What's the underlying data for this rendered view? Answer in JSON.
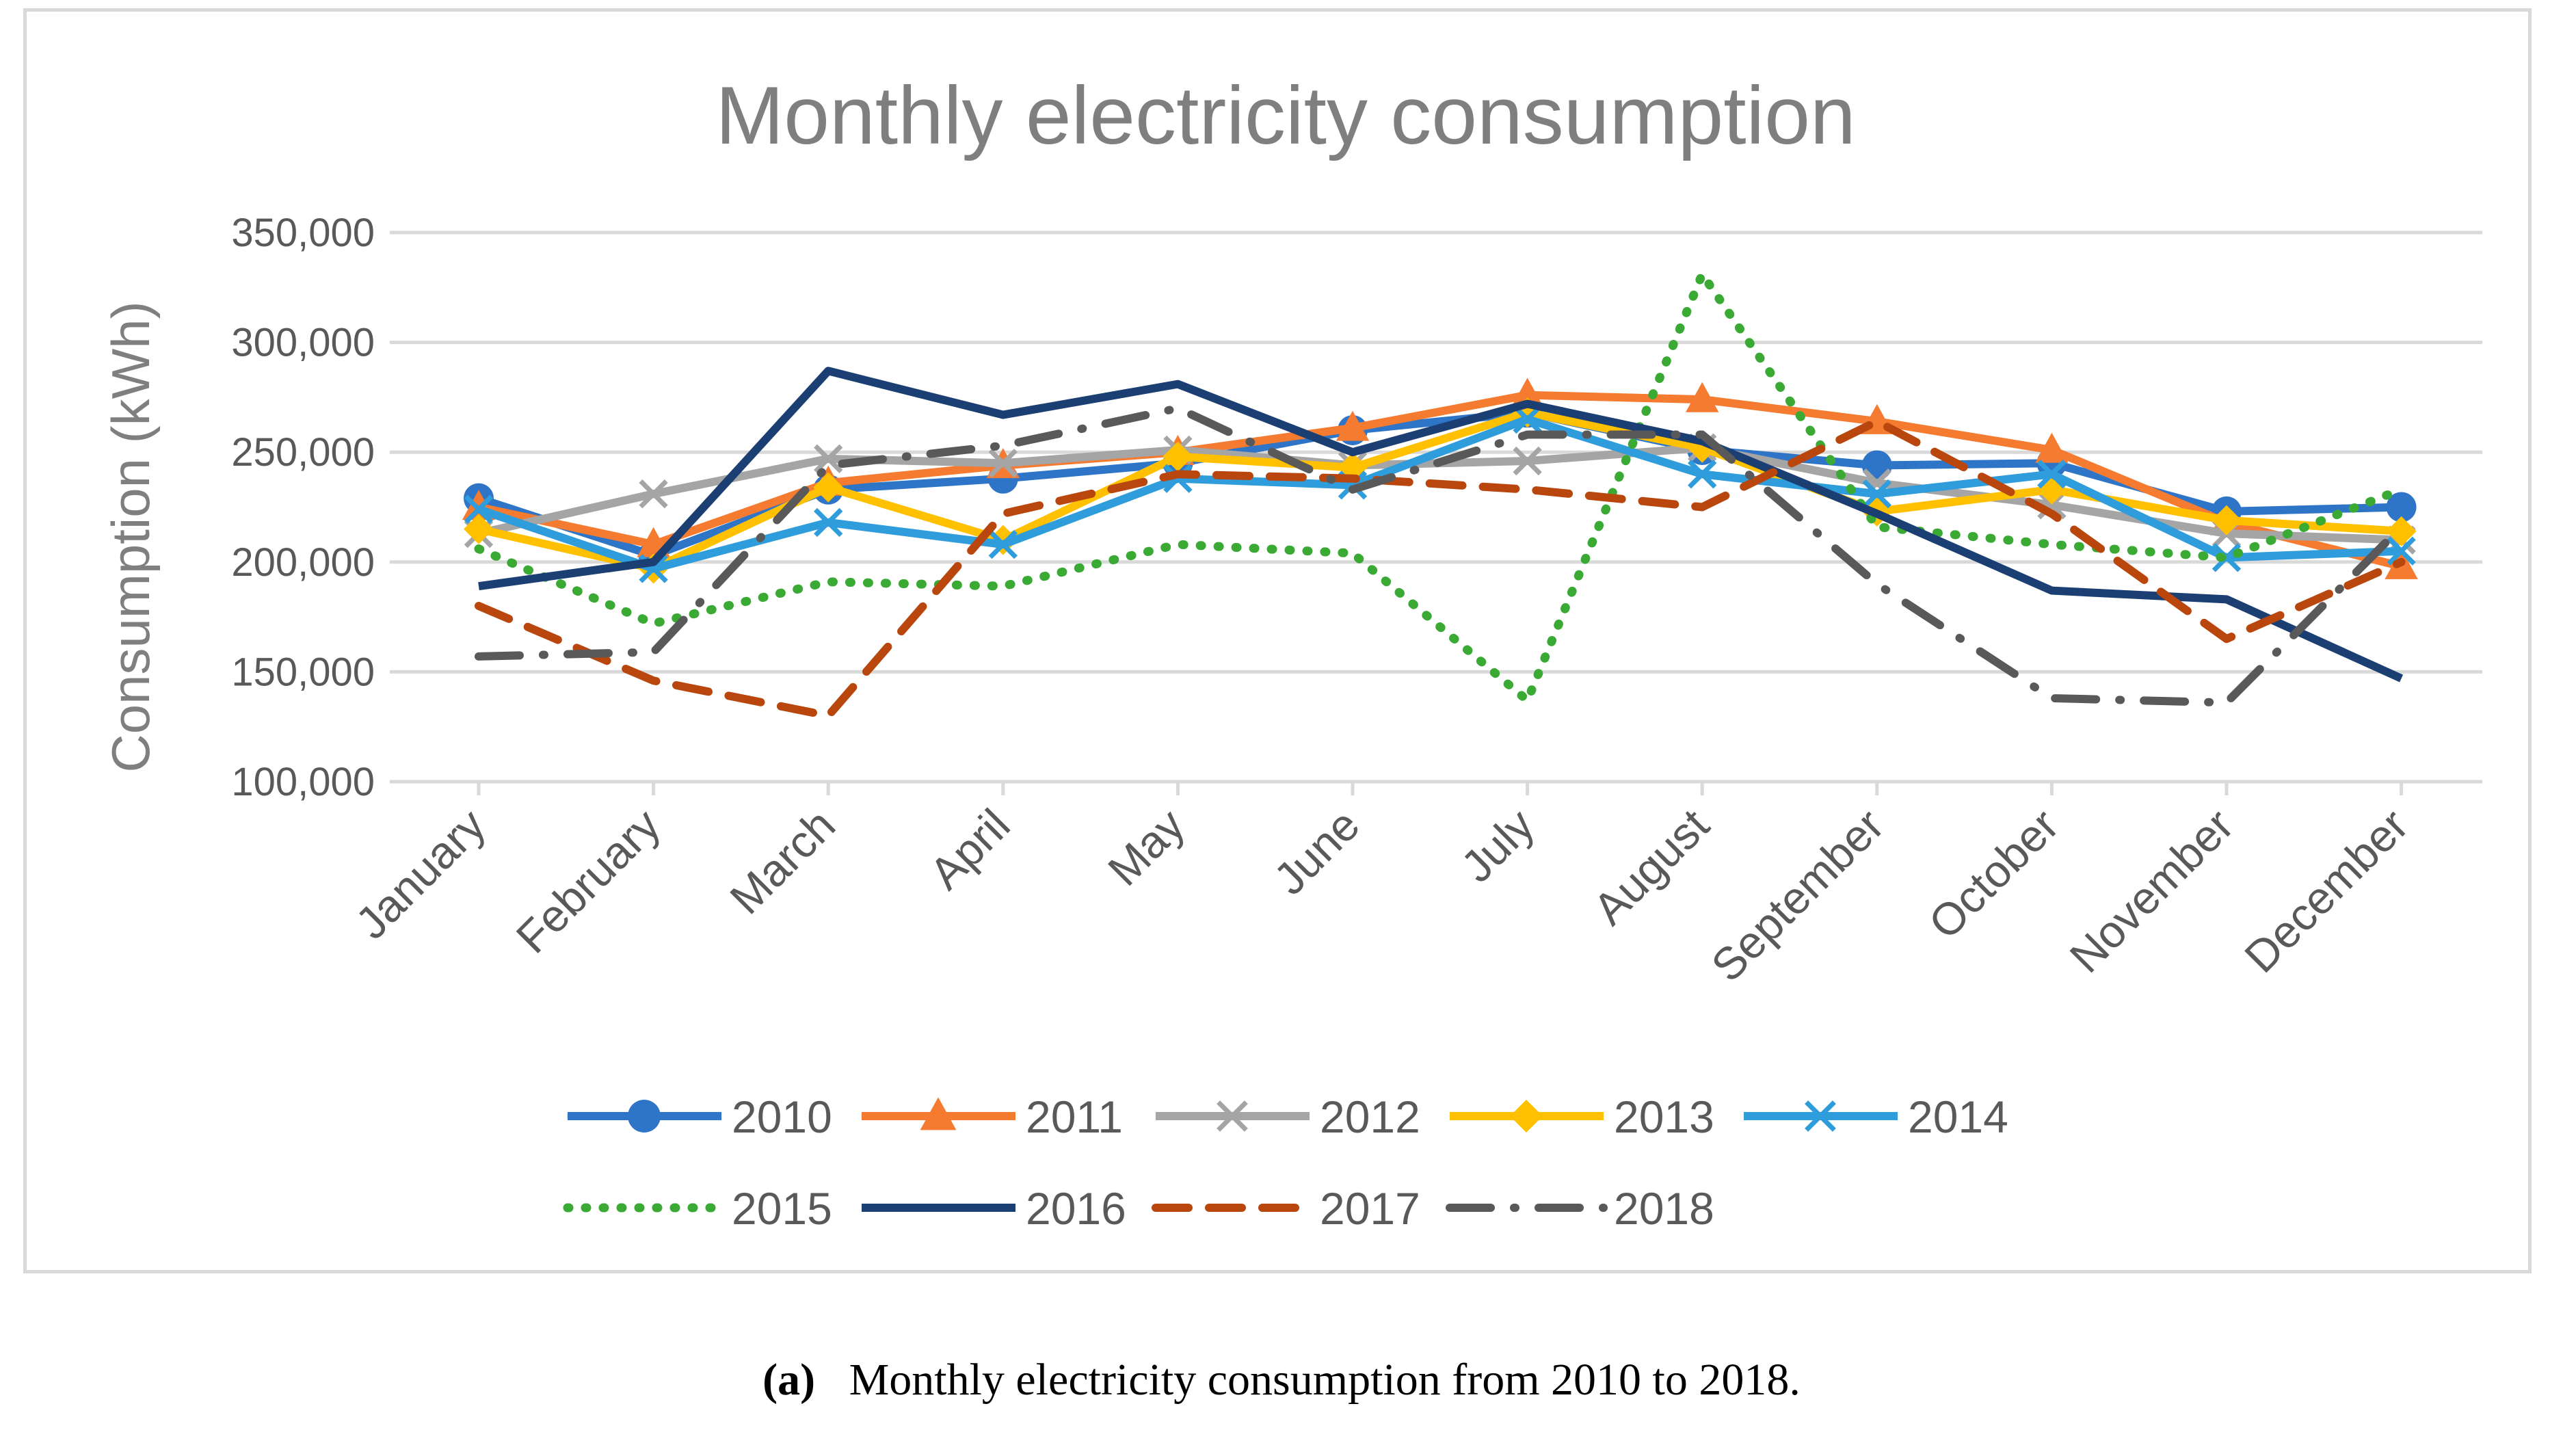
{
  "chart_data": {
    "type": "line",
    "title": "Monthly electricity consumption",
    "xlabel": "",
    "ylabel": "Consumption (kWh)",
    "ylim": [
      100000,
      350000
    ],
    "yticks": [
      100000,
      150000,
      200000,
      250000,
      300000,
      350000
    ],
    "ytick_labels": [
      "100,000",
      "150,000",
      "200,000",
      "250,000",
      "300,000",
      "350,000"
    ],
    "grid": true,
    "legend_position": "bottom",
    "categories": [
      "January",
      "February",
      "March",
      "April",
      "May",
      "June",
      "July",
      "August",
      "September",
      "October",
      "November",
      "December"
    ],
    "series": [
      {
        "name": "2010",
        "color": "#2e75c8",
        "marker": "circle",
        "dash": "solid",
        "values": [
          229000,
          203000,
          233000,
          238000,
          245000,
          260000,
          268000,
          251000,
          244000,
          245000,
          223000,
          225000
        ]
      },
      {
        "name": "2011",
        "color": "#f47b30",
        "marker": "triangle",
        "dash": "solid",
        "values": [
          225000,
          208000,
          236000,
          244000,
          250000,
          261000,
          276000,
          274000,
          264000,
          251000,
          218000,
          198000
        ]
      },
      {
        "name": "2012",
        "color": "#a5a5a5",
        "marker": "x",
        "dash": "solid",
        "values": [
          213000,
          231000,
          247000,
          245000,
          251000,
          244000,
          246000,
          252000,
          236000,
          226000,
          213000,
          210000
        ]
      },
      {
        "name": "2013",
        "color": "#ffc000",
        "marker": "diamond",
        "dash": "solid",
        "values": [
          215000,
          197000,
          234000,
          210000,
          248000,
          243000,
          268000,
          252000,
          223000,
          233000,
          219000,
          214000
        ]
      },
      {
        "name": "2014",
        "color": "#2f9cdb",
        "marker": "x",
        "dash": "solid",
        "values": [
          224000,
          197000,
          218000,
          208000,
          238000,
          235000,
          265000,
          240000,
          231000,
          240000,
          202000,
          205000
        ]
      },
      {
        "name": "2015",
        "color": "#3aaa35",
        "marker": "none",
        "dash": "dot",
        "values": [
          206000,
          172000,
          191000,
          189000,
          208000,
          204000,
          137000,
          331000,
          216000,
          208000,
          202000,
          233000
        ]
      },
      {
        "name": "2016",
        "color": "#1b3f73",
        "marker": "none",
        "dash": "solid",
        "values": [
          189000,
          200000,
          287000,
          267000,
          281000,
          250000,
          272000,
          255000,
          222000,
          187000,
          183000,
          147000
        ]
      },
      {
        "name": "2017",
        "color": "#b9470d",
        "marker": "none",
        "dash": "dash",
        "values": [
          180000,
          146000,
          130000,
          222000,
          240000,
          238000,
          233000,
          225000,
          264000,
          222000,
          165000,
          200000
        ]
      },
      {
        "name": "2018",
        "color": "#595959",
        "marker": "none",
        "dash": "dashdot",
        "values": [
          157000,
          159000,
          244000,
          253000,
          270000,
          233000,
          258000,
          258000,
          190000,
          138000,
          136000,
          216000
        ]
      }
    ]
  },
  "caption": {
    "label": "(a)",
    "text": "Monthly electricity consumption from 2010 to 2018."
  }
}
